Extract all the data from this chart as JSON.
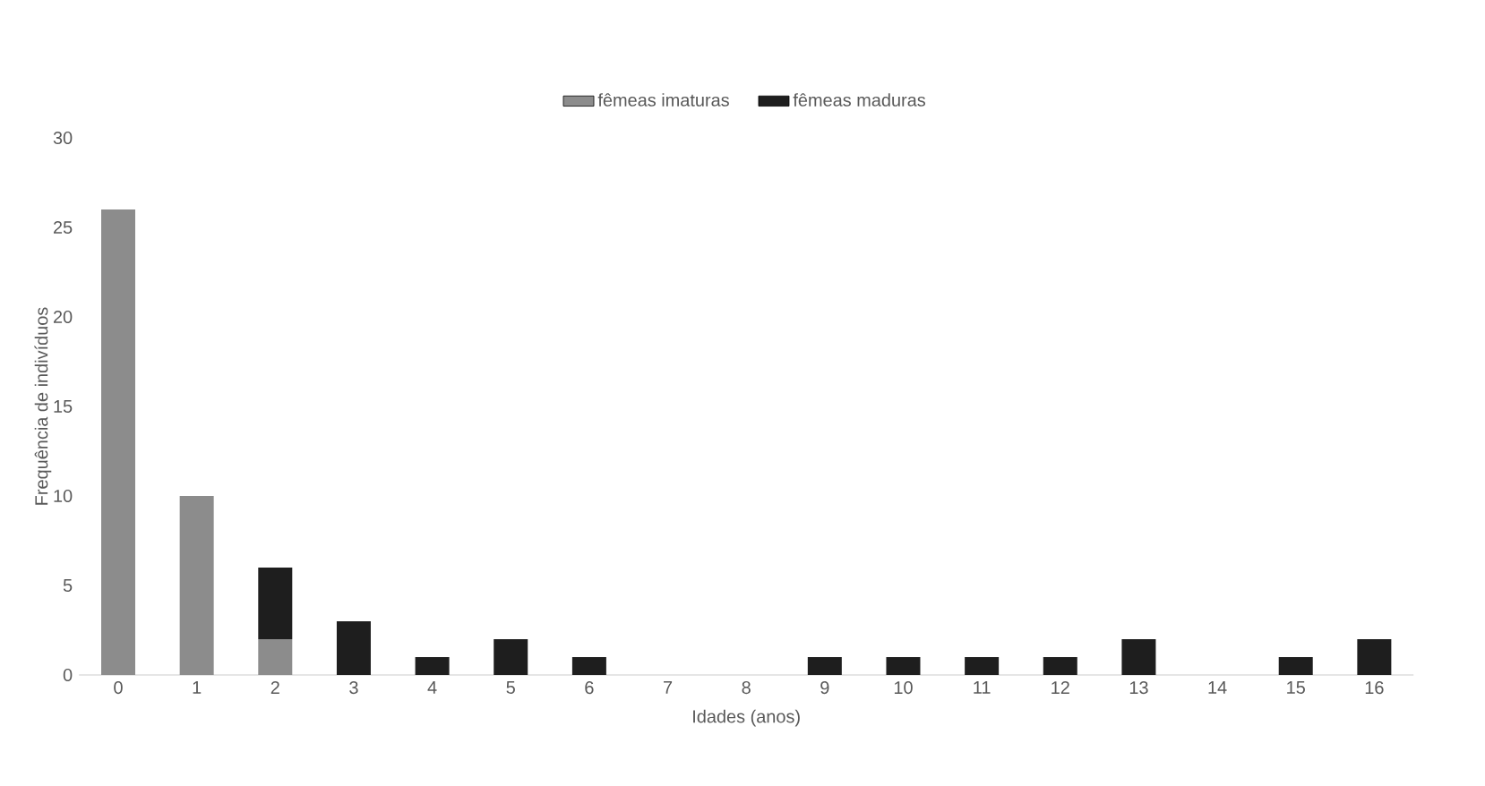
{
  "chart_data": {
    "type": "bar",
    "stacked": true,
    "xlabel": "Idades (anos)",
    "ylabel": "Frequência de indivíduos",
    "categories": [
      "0",
      "1",
      "2",
      "3",
      "4",
      "5",
      "6",
      "7",
      "8",
      "9",
      "10",
      "11",
      "12",
      "13",
      "14",
      "15",
      "16"
    ],
    "series": [
      {
        "name": "fêmeas imaturas",
        "color": "#8c8c8c",
        "values": [
          26,
          10,
          2,
          0,
          0,
          0,
          0,
          0,
          0,
          0,
          0,
          0,
          0,
          0,
          0,
          0,
          0
        ]
      },
      {
        "name": "fêmeas maduras",
        "color": "#1e1e1e",
        "values": [
          0,
          0,
          4,
          3,
          1,
          2,
          1,
          0,
          0,
          1,
          1,
          1,
          1,
          2,
          0,
          1,
          2
        ]
      }
    ],
    "ylim": [
      0,
      30
    ],
    "yticks": [
      0,
      5,
      10,
      15,
      20,
      25,
      30
    ],
    "grid": false,
    "legend": "top"
  }
}
